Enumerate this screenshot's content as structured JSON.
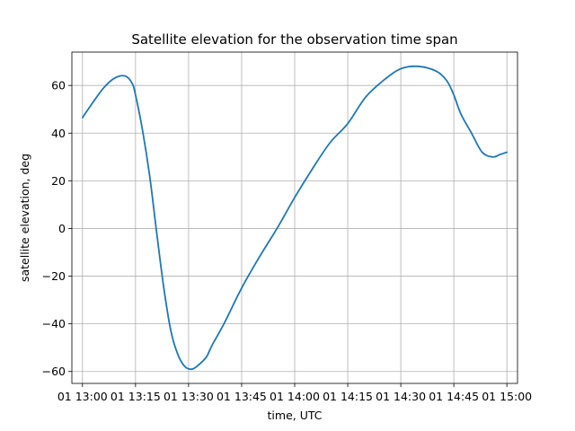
{
  "chart_data": {
    "type": "line",
    "title": "Satellite elevation for the observation time span",
    "xlabel": "time, UTC",
    "ylabel": "satellite elevation, deg",
    "grid": true,
    "xlim": [
      "01 12:57",
      "01 15:03"
    ],
    "ylim": [
      -65,
      74
    ],
    "x_ticks": [
      "01 13:00",
      "01 13:15",
      "01 13:30",
      "01 13:45",
      "01 14:00",
      "01 14:15",
      "01 14:30",
      "01 14:45",
      "01 15:00"
    ],
    "y_ticks": [
      -60,
      -40,
      -20,
      0,
      20,
      40,
      60
    ],
    "series": [
      {
        "color": "#1f77b4",
        "x": [
          "01 13:00",
          "01 13:03",
          "01 13:06",
          "01 13:09",
          "01 13:12",
          "01 13:14",
          "01 13:15",
          "01 13:17",
          "01 13:19",
          "01 13:21",
          "01 13:23",
          "01 13:25",
          "01 13:27",
          "01 13:29",
          "01 13:31",
          "01 13:33",
          "01 13:35",
          "01 13:36",
          "01 13:37",
          "01 13:40",
          "01 13:45",
          "01 13:50",
          "01 13:55",
          "01 14:00",
          "01 14:05",
          "01 14:10",
          "01 14:15",
          "01 14:20",
          "01 14:25",
          "01 14:30",
          "01 14:35",
          "01 14:40",
          "01 14:43",
          "01 14:45",
          "01 14:47",
          "01 14:50",
          "01 14:53",
          "01 14:56",
          "01 14:58",
          "01 15:00"
        ],
        "y": [
          46.5,
          53,
          59,
          63,
          64,
          61,
          56,
          41,
          22,
          -2,
          -25,
          -43,
          -53,
          -58,
          -59,
          -57,
          -54,
          -51,
          -48,
          -40,
          -25,
          -12,
          0,
          13,
          25,
          36,
          44,
          55,
          62,
          67,
          68,
          66,
          62,
          56,
          48,
          40,
          32,
          30,
          31,
          32
        ]
      }
    ]
  }
}
